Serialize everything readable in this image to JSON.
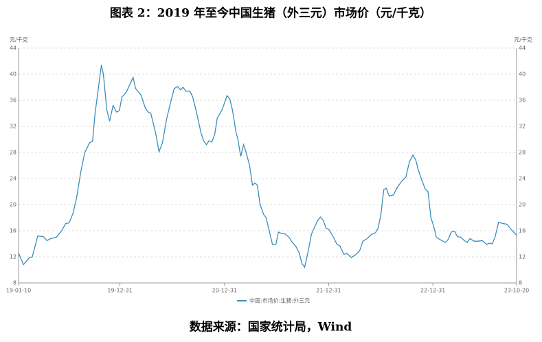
{
  "chart_data": {
    "type": "line",
    "title": "图表 2：2019 年至今中国生猪（外三元）市场价（元/千克）",
    "source": "数据来源：国家统计局，Wind",
    "y_label": "元/千克",
    "x": [
      "19-01-10",
      "19-01-27",
      "19-02-15",
      "19-02-27",
      "19-03-18",
      "19-04-07",
      "19-04-19",
      "19-05-03",
      "19-05-22",
      "19-06-10",
      "19-06-24",
      "19-07-06",
      "19-07-20",
      "19-08-01",
      "19-08-16",
      "19-08-30",
      "19-09-16",
      "19-09-26",
      "19-10-05",
      "19-10-27",
      "19-11-03",
      "19-11-15",
      "19-11-25",
      "19-12-07",
      "19-12-19",
      "19-12-29",
      "20-01-07",
      "20-01-22",
      "20-02-15",
      "20-02-24",
      "20-03-14",
      "20-03-29",
      "20-04-08",
      "20-04-17",
      "20-05-04",
      "20-05-16",
      "20-05-28",
      "20-06-11",
      "20-06-26",
      "20-07-08",
      "20-07-20",
      "20-07-30",
      "20-08-08",
      "20-08-18",
      "20-09-01",
      "20-09-11",
      "20-09-25",
      "20-10-10",
      "20-10-19",
      "20-10-29",
      "20-11-07",
      "20-11-17",
      "20-11-27",
      "20-12-06",
      "20-12-21",
      "20-12-28",
      "21-01-09",
      "21-01-19",
      "21-01-28",
      "21-02-09",
      "21-02-16",
      "21-02-26",
      "21-03-08",
      "21-03-17",
      "21-03-29",
      "21-04-08",
      "21-04-17",
      "21-04-25",
      "21-05-05",
      "21-05-17",
      "21-05-26",
      "21-06-07",
      "21-06-17",
      "21-06-29",
      "21-07-08",
      "21-07-18",
      "21-08-01",
      "21-08-14",
      "21-08-26",
      "21-09-07",
      "21-09-19",
      "21-09-28",
      "21-10-08",
      "21-10-20",
      "21-11-01",
      "21-11-13",
      "21-11-23",
      "21-12-02",
      "21-12-12",
      "21-12-22",
      "22-01-01",
      "22-01-17",
      "22-01-29",
      "22-02-08",
      "22-02-22",
      "22-03-06",
      "22-03-20",
      "22-04-04",
      "22-04-18",
      "22-04-30",
      "22-05-15",
      "22-05-29",
      "22-06-13",
      "22-06-22",
      "22-07-02",
      "22-07-12",
      "22-07-21",
      "22-07-31",
      "22-08-15",
      "22-08-29",
      "22-09-13",
      "22-09-27",
      "22-10-10",
      "22-10-22",
      "22-11-01",
      "22-11-10",
      "22-11-20",
      "22-12-04",
      "22-12-14",
      "22-12-24",
      "23-01-02",
      "23-01-12",
      "23-01-27",
      "23-02-13",
      "23-02-23",
      "23-03-05",
      "23-03-17",
      "23-03-27",
      "23-04-08",
      "23-04-20",
      "23-04-30",
      "23-05-10",
      "23-05-24",
      "23-06-08",
      "23-06-22",
      "23-07-07",
      "23-07-17",
      "23-07-27",
      "23-08-06",
      "23-08-18",
      "23-09-02",
      "23-09-16",
      "23-10-01",
      "23-10-20"
    ],
    "series": [
      {
        "name": "中国:市场价:生猪:外三元",
        "color": "#3a8dbb",
        "values": [
          12.6,
          10.8,
          11.8,
          12.0,
          15.2,
          15.1,
          14.5,
          14.8,
          15.0,
          16.0,
          17.1,
          17.2,
          18.7,
          21.0,
          25.0,
          28.0,
          29.5,
          29.7,
          34.0,
          41.4,
          40.0,
          34.5,
          32.8,
          35.2,
          34.2,
          34.4,
          36.5,
          37.2,
          39.5,
          37.8,
          36.8,
          34.8,
          34.2,
          34.0,
          31.0,
          28.1,
          29.5,
          33.0,
          35.8,
          37.8,
          38.1,
          37.6,
          38.0,
          37.4,
          37.4,
          36.5,
          34.0,
          31.0,
          29.8,
          29.2,
          29.8,
          29.6,
          30.8,
          33.3,
          34.4,
          35.2,
          36.7,
          36.2,
          34.5,
          31.2,
          30.0,
          27.4,
          29.2,
          28.0,
          26.0,
          23.0,
          23.3,
          23.0,
          20.0,
          18.5,
          18.0,
          15.8,
          13.9,
          13.9,
          15.8,
          15.6,
          15.5,
          15.0,
          14.2,
          13.6,
          12.6,
          11.0,
          10.4,
          12.8,
          15.5,
          16.7,
          17.6,
          18.1,
          17.6,
          16.4,
          16.2,
          15.0,
          13.9,
          13.7,
          12.4,
          12.5,
          11.9,
          12.3,
          12.9,
          14.4,
          14.8,
          15.4,
          15.7,
          16.4,
          18.5,
          22.3,
          22.5,
          21.3,
          21.5,
          22.7,
          23.6,
          24.2,
          26.6,
          27.6,
          26.8,
          25.3,
          24.0,
          22.4,
          22.0,
          18.0,
          16.8,
          15.0,
          14.6,
          14.2,
          14.7,
          15.8,
          15.9,
          15.1,
          15.0,
          14.5,
          14.2,
          14.8,
          14.4,
          14.4,
          14.5,
          13.9,
          14.1,
          14.0,
          15.1,
          17.3,
          17.1,
          17.0,
          16.2,
          15.3
        ]
      }
    ],
    "xlim": [
      "19-01-10",
      "23-10-20"
    ],
    "xticks": [
      "19-01-10",
      "19-12-31",
      "20-12-31",
      "21-12-31",
      "22-12-31",
      "23-10-20"
    ],
    "ylim": [
      8,
      44
    ],
    "yticks": [
      8,
      12,
      16,
      20,
      24,
      28,
      32,
      36,
      40,
      44
    ],
    "grid": true
  }
}
